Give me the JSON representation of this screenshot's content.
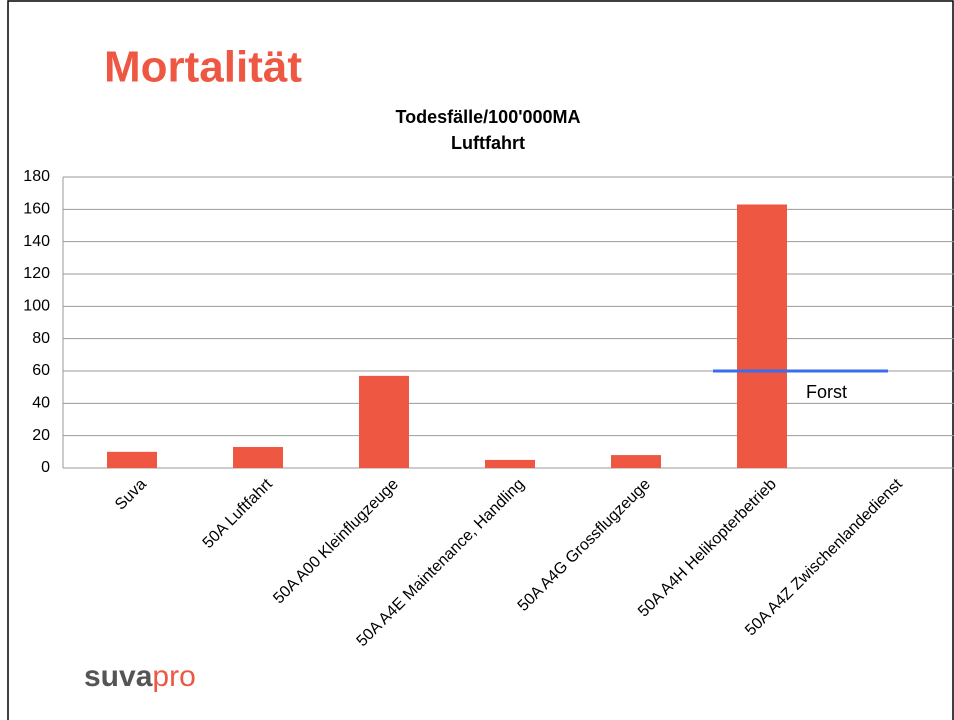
{
  "slide_title": "Mortalität",
  "logo": {
    "part1": "suva",
    "part2": "pro"
  },
  "chart_data": {
    "type": "bar",
    "title": "Todesfälle/100'000MA",
    "subtitle": "Luftfahrt",
    "categories": [
      "Suva",
      "50A Luftfahrt",
      "50A A00 Kleinflugzeuge",
      "50A A4E Maintenance, Handling",
      "50A A4G Grossflugzeuge",
      "50A A4H Helikopterbetrieb",
      "50A A4Z Zwischenlandedienst"
    ],
    "values": [
      10,
      13,
      57,
      5,
      8,
      163,
      0
    ],
    "color": "#ee5843",
    "ylim": [
      0,
      180
    ],
    "yticks": [
      0,
      20,
      40,
      60,
      80,
      100,
      120,
      140,
      160,
      180
    ],
    "grid": true,
    "reference_line": {
      "value": 60,
      "label": "Forst",
      "color": "#3a6ee8"
    }
  }
}
